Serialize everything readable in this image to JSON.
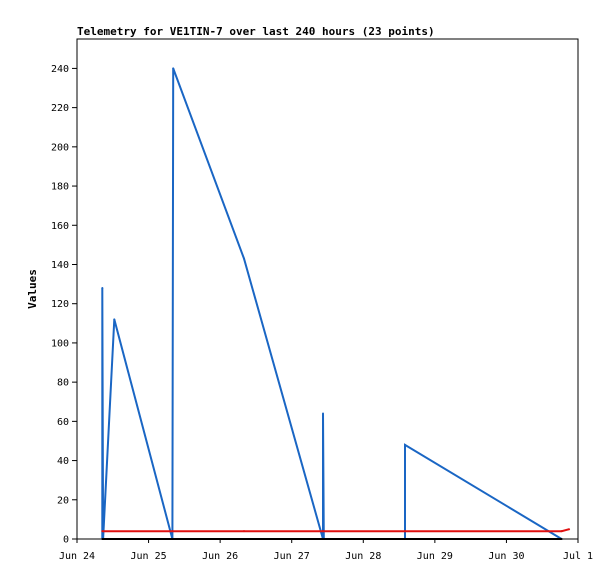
{
  "chart_data": {
    "type": "line",
    "title": "Telemetry for VE1TIN-7 over last 240 hours (23 points)",
    "xlabel": "",
    "ylabel": "Values",
    "x_axis": {
      "min": "2024-06-24T00:00",
      "max": "2024-07-01T00:00",
      "ticks": [
        {
          "value": "2024-06-24T00:00",
          "label": "Jun 24"
        },
        {
          "value": "2024-06-25T00:00",
          "label": "Jun 25"
        },
        {
          "value": "2024-06-26T00:00",
          "label": "Jun 26"
        },
        {
          "value": "2024-06-27T00:00",
          "label": "Jun 27"
        },
        {
          "value": "2024-06-28T00:00",
          "label": "Jun 28"
        },
        {
          "value": "2024-06-29T00:00",
          "label": "Jun 29"
        },
        {
          "value": "2024-06-30T00:00",
          "label": "Jun 30"
        },
        {
          "value": "2024-07-01T00:00",
          "label": "Jul 1"
        }
      ]
    },
    "y_axis": {
      "min": 0,
      "max": 255,
      "ticks": [
        0,
        20,
        40,
        60,
        80,
        100,
        120,
        140,
        160,
        180,
        200,
        220,
        240
      ]
    },
    "grid": false,
    "series": [
      {
        "color": "#1a66c4",
        "points": [
          {
            "x": "2024-06-24T08:30",
            "y": 0
          },
          {
            "x": "2024-06-24T08:30",
            "y": 128
          },
          {
            "x": "2024-06-24T08:45",
            "y": 0
          },
          {
            "x": "2024-06-24T12:30",
            "y": 112
          },
          {
            "x": "2024-06-25T08:00",
            "y": 0
          },
          {
            "x": "2024-06-25T08:15",
            "y": 240
          },
          {
            "x": "2024-06-26T08:00",
            "y": 143
          },
          {
            "x": "2024-06-27T10:30",
            "y": 0
          },
          {
            "x": "2024-06-27T10:30",
            "y": 64
          },
          {
            "x": "2024-06-27T10:45",
            "y": 0
          },
          {
            "x": "2024-06-28T14:00",
            "y": 0
          },
          {
            "x": "2024-06-28T14:00",
            "y": 48
          },
          {
            "x": "2024-06-30T18:30",
            "y": 0
          }
        ]
      },
      {
        "color": "#e01010",
        "points": [
          {
            "x": "2024-06-24T08:30",
            "y": 4
          },
          {
            "x": "2024-06-25T08:00",
            "y": 4
          },
          {
            "x": "2024-06-26T08:00",
            "y": 4
          },
          {
            "x": "2024-06-27T10:30",
            "y": 4
          },
          {
            "x": "2024-06-28T14:00",
            "y": 4
          },
          {
            "x": "2024-06-30T18:30",
            "y": 4
          },
          {
            "x": "2024-06-30T21:00",
            "y": 5
          }
        ]
      },
      {
        "color": "#000000",
        "points": [
          {
            "x": "2024-06-24T08:30",
            "y": 0
          },
          {
            "x": "2024-06-30T18:30",
            "y": 0
          }
        ]
      }
    ]
  }
}
